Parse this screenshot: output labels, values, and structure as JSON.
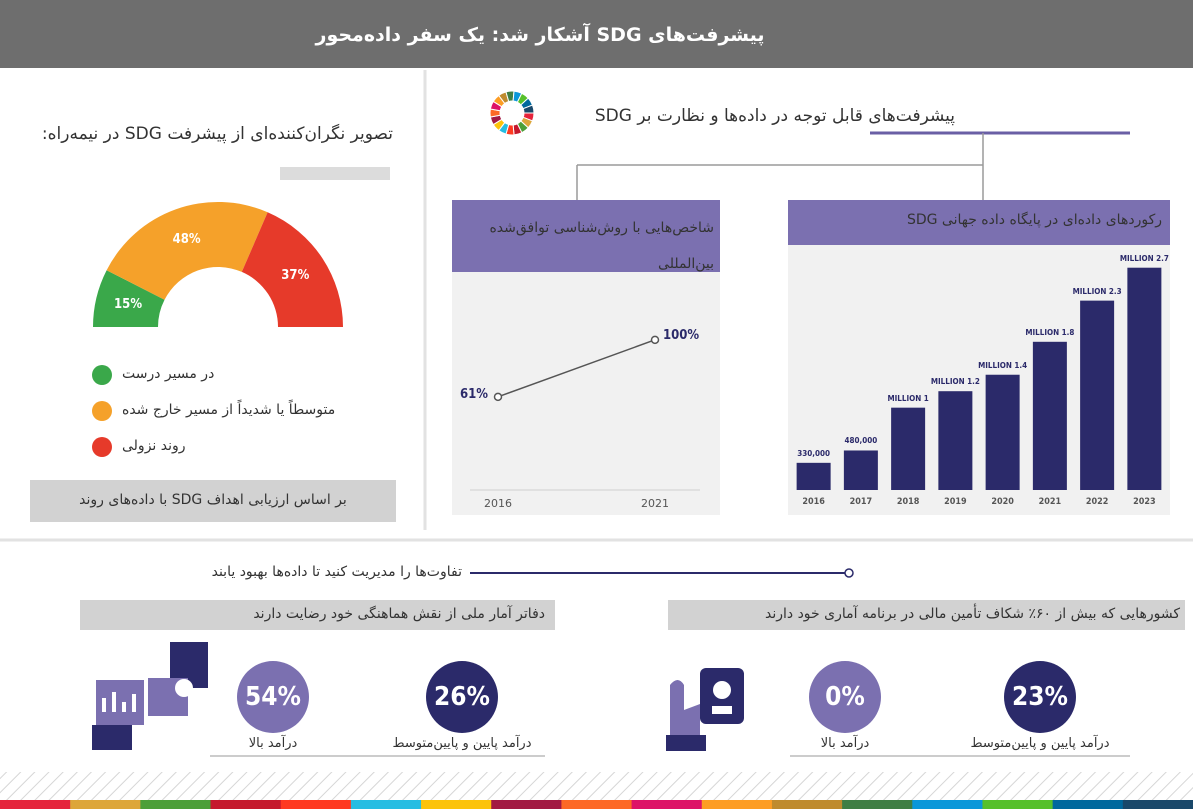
{
  "header": {
    "title": "پیشرفت‌های SDG آشکار شد: یک سفر داده‌محور"
  },
  "progress": {
    "heading": "پیشرفت‌های قابل توجه در داده‌ها و نظارت بر SDG"
  },
  "chart_data": [
    {
      "type": "pie",
      "title": "تصویر نگران‌کننده‌ای از پیشرفت SDG در نیمه‌راه:",
      "categories": [
        "در مسیر درست",
        "متوسطاً یا شدیداً از مسیر خارج شده",
        "روند نزولی"
      ],
      "values": [
        15,
        48,
        37
      ],
      "value_labels": [
        "15%",
        "48%",
        "37%"
      ],
      "colors": [
        "#3aa84a",
        "#f5a12a",
        "#e63a2a"
      ],
      "note": "بر اساس ارزیابی اهداف SDG با داده‌های روند"
    },
    {
      "type": "line",
      "title": "شاخص‌هایی با روش‌شناسی توافق‌شده بین‌المللی",
      "categories": [
        "2016",
        "2021"
      ],
      "values": [
        61,
        100
      ],
      "value_labels": [
        "61%",
        "100%"
      ],
      "ylim": [
        0,
        130
      ],
      "color": "#555555"
    },
    {
      "type": "bar",
      "title": "رکوردهای داده‌ای در پایگاه داده جهانی SDG",
      "categories": [
        "2016",
        "2017",
        "2018",
        "2019",
        "2020",
        "2021",
        "2022",
        "2023"
      ],
      "values": [
        330000,
        480000,
        1000000,
        1200000,
        1400000,
        1800000,
        2300000,
        2700000
      ],
      "value_labels": [
        "330,000",
        "480,000",
        "1 MILLION",
        "1.2 MILLION",
        "1.4 MILLION",
        "1.8 MILLION",
        "2.3 MILLION",
        "2.7 MILLION"
      ],
      "ylim": [
        0,
        3000000
      ],
      "color": "#2b2a6a"
    }
  ],
  "gaps": {
    "heading": "تفاوت‌ها را مدیریت کنید تا داده‌ها بهبود یابند",
    "groups": [
      {
        "title": "دفاتر آمار ملی از نقش هماهنگی خود رضایت دارند",
        "stats": [
          {
            "value": "54%",
            "label": "درآمد بالا"
          },
          {
            "value": "26%",
            "label": "درآمد پایین و پایین‌متوسط"
          }
        ]
      },
      {
        "title": "کشورهایی که بیش از ۶۰٪ شکاف تأمین مالی در برنامه آماری خود دارند",
        "stats": [
          {
            "value": "0%",
            "label": "درآمد بالا"
          },
          {
            "value": "23%",
            "label": "درآمد پایین و پایین‌متوسط"
          }
        ]
      }
    ]
  }
}
